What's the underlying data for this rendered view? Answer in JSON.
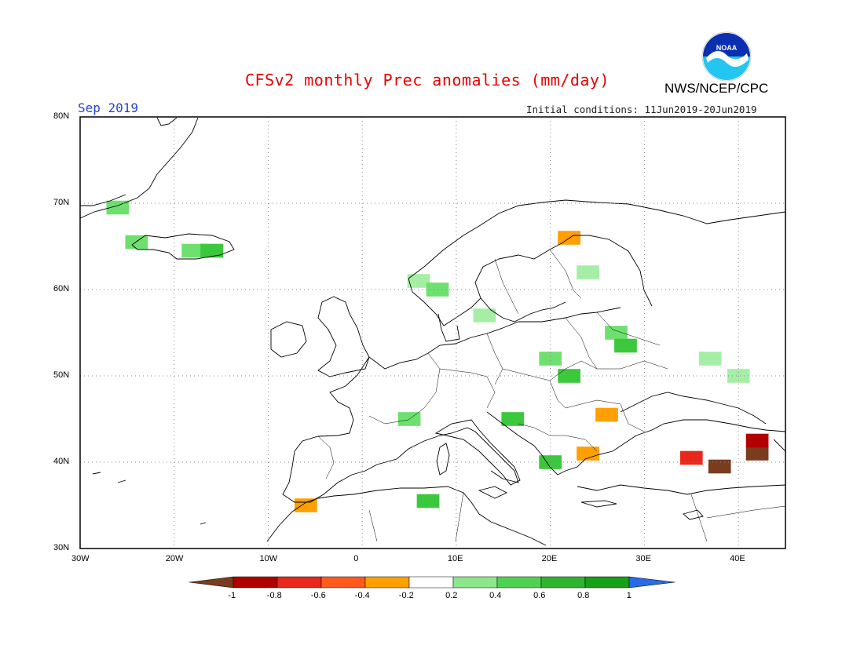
{
  "title": "CFSv2 monthly Prec anomalies (mm/day)",
  "month": "Sep 2019",
  "initial_conditions": "Initial conditions: 11Jun2019-20Jun2019",
  "agency": "NWS/NCEP/CPC",
  "logo_text": "NOAA",
  "lat_labels": [
    "80N",
    "70N",
    "60N",
    "50N",
    "40N",
    "30N"
  ],
  "lon_labels": [
    "30W",
    "20W",
    "10W",
    "0",
    "10E",
    "20E",
    "30E",
    "40E"
  ],
  "colorbar": {
    "labels": [
      "-1",
      "-0.8",
      "-0.6",
      "-0.4",
      "-0.2",
      "0.2",
      "0.4",
      "0.6",
      "0.8",
      "1"
    ],
    "colors": [
      "#7a3c1e",
      "#b20000",
      "#e8281c",
      "#ff5a1e",
      "#ff9f00",
      "#ffffff",
      "#8ce68c",
      "#50d250",
      "#2fb42f",
      "#18a018",
      "#2a6ae6"
    ]
  },
  "map_extent": {
    "lon_min": -30,
    "lon_max": 45,
    "lat_min": 30,
    "lat_max": 80
  },
  "anomaly_cells": [
    {
      "lon": -26,
      "lat": 69.5,
      "level": "0.4"
    },
    {
      "lon": -24,
      "lat": 65.5,
      "level": "0.4"
    },
    {
      "lon": -18,
      "lat": 64.5,
      "level": "0.4"
    },
    {
      "lon": -16,
      "lat": 64.5,
      "level": "0.6"
    },
    {
      "lon": 6,
      "lat": 61,
      "level": "0.2"
    },
    {
      "lon": 8,
      "lat": 60,
      "level": "0.4"
    },
    {
      "lon": 13,
      "lat": 57,
      "level": "0.2"
    },
    {
      "lon": 22,
      "lat": 66,
      "level": "-0.4"
    },
    {
      "lon": 24,
      "lat": 62,
      "level": "0.2"
    },
    {
      "lon": 27,
      "lat": 55,
      "level": "0.4"
    },
    {
      "lon": 28,
      "lat": 53.5,
      "level": "0.6"
    },
    {
      "lon": 20,
      "lat": 52,
      "level": "0.4"
    },
    {
      "lon": 22,
      "lat": 50,
      "level": "0.6"
    },
    {
      "lon": 16,
      "lat": 45,
      "level": "0.6"
    },
    {
      "lon": 5,
      "lat": 45,
      "level": "0.4"
    },
    {
      "lon": 7,
      "lat": 35.5,
      "level": "0.6"
    },
    {
      "lon": 37,
      "lat": 52,
      "level": "0.2"
    },
    {
      "lon": 40,
      "lat": 50,
      "level": "0.2"
    },
    {
      "lon": 20,
      "lat": 40,
      "level": "0.6"
    },
    {
      "lon": 26,
      "lat": 45.5,
      "level": "-0.4"
    },
    {
      "lon": 24,
      "lat": 41,
      "level": "-0.4"
    },
    {
      "lon": 35,
      "lat": 40.5,
      "level": "-0.6"
    },
    {
      "lon": 38,
      "lat": 39.5,
      "level": "-1"
    },
    {
      "lon": 42,
      "lat": 41,
      "level": "-1"
    },
    {
      "lon": 42,
      "lat": 42.5,
      "level": "-0.8"
    },
    {
      "lon": -6,
      "lat": 35,
      "level": "-0.4"
    }
  ]
}
